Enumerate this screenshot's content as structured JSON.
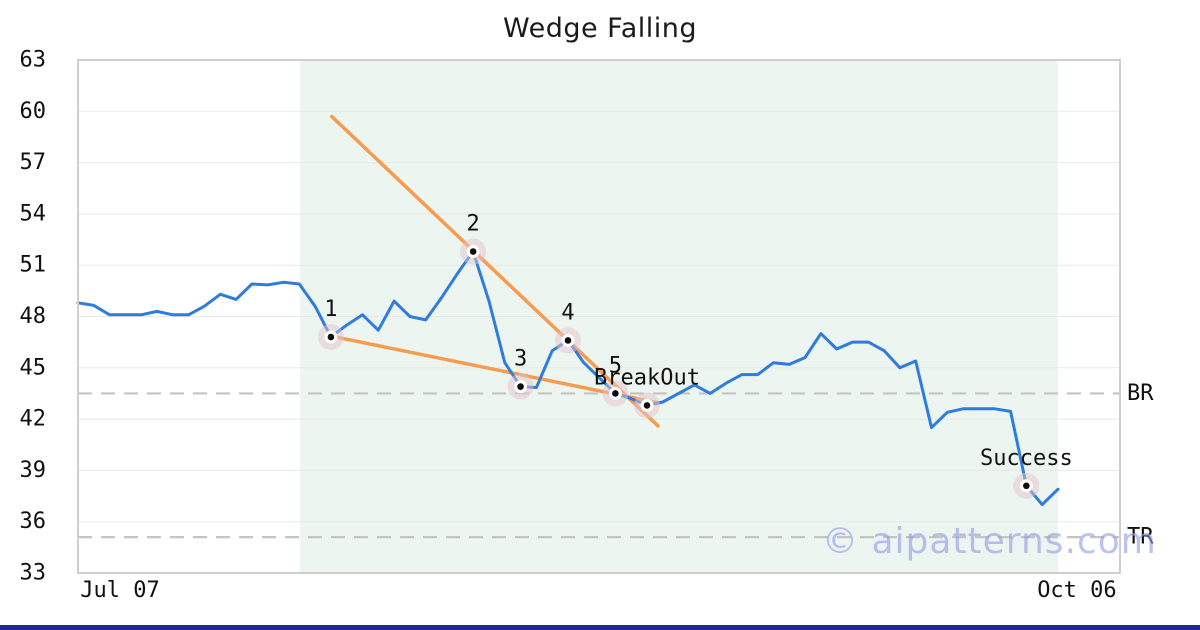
{
  "watermark_text": "© aipatterns.com",
  "colors": {
    "line": "#2e7cdb",
    "trend": "#f79b4e",
    "shade": "#edf5f0",
    "grid": "#e8e8e8",
    "border": "#cfcfcf",
    "dashed": "#c4c4c4",
    "halo": "#e3c3cc",
    "marker_dot": "#0d0d0d",
    "text": "#111111",
    "watermark": "rgba(143,158,231,0.62)",
    "bottom_bar": "#1a2d8c"
  },
  "chart_data": {
    "type": "line",
    "title": "Wedge Falling",
    "x_axis": {
      "ticks": [
        {
          "label": "Jul 07",
          "i": 2.66
        },
        {
          "label": "Oct 06",
          "i": 63.2
        }
      ]
    },
    "y_axis": {
      "ticks": [
        63,
        60,
        57,
        54,
        51,
        48,
        45,
        42,
        39,
        36,
        33
      ],
      "range": [
        33,
        63
      ]
    },
    "grid": true,
    "legend": false,
    "series": {
      "name": "price",
      "values": [
        48.8,
        48.65,
        48.1,
        48.1,
        48.1,
        48.3,
        48.1,
        48.1,
        48.6,
        49.3,
        49.0,
        49.9,
        49.85,
        50.0,
        49.9,
        48.6,
        46.8,
        47.5,
        48.1,
        47.2,
        48.9,
        48.0,
        47.8,
        49.1,
        50.5,
        51.8,
        48.9,
        45.3,
        43.9,
        43.85,
        46.0,
        46.6,
        45.3,
        44.4,
        43.5,
        43.2,
        42.8,
        43.0,
        43.5,
        44.0,
        43.5,
        44.1,
        44.6,
        44.6,
        45.3,
        45.2,
        45.6,
        47.0,
        46.1,
        46.5,
        46.5,
        46.0,
        45.0,
        45.4,
        41.5,
        42.4,
        42.6,
        42.6,
        42.6,
        42.45,
        38.1,
        37.0,
        37.9
      ]
    },
    "levels": [
      {
        "label": "BR",
        "value": 43.5
      },
      {
        "label": "TR",
        "value": 35.1
      }
    ],
    "trendlines": [
      {
        "name": "upper",
        "from": {
          "i": 16.05,
          "v": 59.7
        },
        "to": {
          "i": 36.7,
          "v": 41.6
        }
      },
      {
        "name": "lower",
        "from": {
          "i": 16.05,
          "v": 46.85
        },
        "to": {
          "i": 36.7,
          "v": 42.95
        }
      }
    ],
    "pattern_zone": {
      "from_i": 14.05,
      "to_i": 62
    },
    "annotations": [
      {
        "label": "1",
        "i": 16,
        "v": 46.8
      },
      {
        "label": "2",
        "i": 25,
        "v": 51.8
      },
      {
        "label": "3",
        "i": 28,
        "v": 43.9
      },
      {
        "label": "4",
        "i": 31,
        "v": 46.6
      },
      {
        "label": "5",
        "i": 34,
        "v": 43.5
      },
      {
        "label": "BreakOut",
        "i": 36,
        "v": 42.8
      },
      {
        "label": "Success",
        "i": 60,
        "v": 38.1
      }
    ]
  }
}
